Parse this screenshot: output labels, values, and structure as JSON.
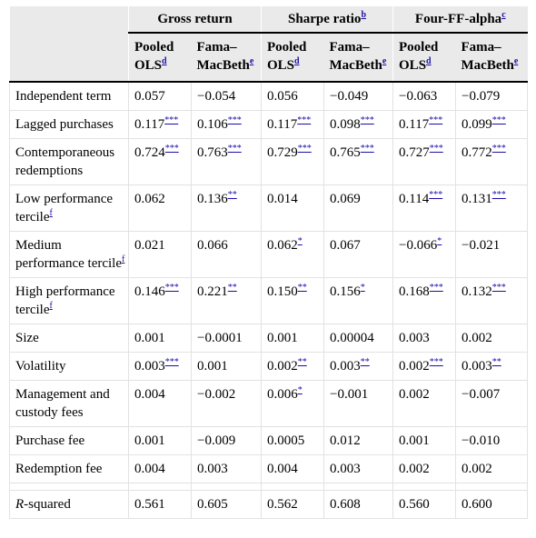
{
  "groups": [
    {
      "label": "Gross return",
      "fn": ""
    },
    {
      "label": "Sharpe ratio",
      "fn": "b"
    },
    {
      "label": "Four-FF-alpha",
      "fn": "c"
    }
  ],
  "subheaders": [
    {
      "l1": "Pooled",
      "l2": "OLS",
      "fn": "d"
    },
    {
      "l1": "Fama–",
      "l2": "MacBeth",
      "fn": "e"
    }
  ],
  "rows": [
    {
      "label": "Independent term",
      "label_fn": "",
      "cells": [
        {
          "v": "0.057",
          "s": ""
        },
        {
          "v": "−0.054",
          "s": ""
        },
        {
          "v": "0.056",
          "s": ""
        },
        {
          "v": "−0.049",
          "s": ""
        },
        {
          "v": "−0.063",
          "s": ""
        },
        {
          "v": "−0.079",
          "s": ""
        }
      ]
    },
    {
      "label": "Lagged purchases",
      "label_fn": "",
      "cells": [
        {
          "v": "0.117",
          "s": "***"
        },
        {
          "v": "0.106",
          "s": "***"
        },
        {
          "v": "0.117",
          "s": "***"
        },
        {
          "v": "0.098",
          "s": "***"
        },
        {
          "v": "0.117",
          "s": "***"
        },
        {
          "v": "0.099",
          "s": "***"
        }
      ]
    },
    {
      "label": "Contemporaneous redemptions",
      "label_fn": "",
      "cells": [
        {
          "v": "0.724",
          "s": "***"
        },
        {
          "v": "0.763",
          "s": "***"
        },
        {
          "v": "0.729",
          "s": "***"
        },
        {
          "v": "0.765",
          "s": "***"
        },
        {
          "v": "0.727",
          "s": "***"
        },
        {
          "v": "0.772",
          "s": "***"
        }
      ]
    },
    {
      "label": "Low performance tercile",
      "label_fn": "f",
      "cells": [
        {
          "v": "0.062",
          "s": ""
        },
        {
          "v": "0.136",
          "s": "**"
        },
        {
          "v": "0.014",
          "s": ""
        },
        {
          "v": "0.069",
          "s": ""
        },
        {
          "v": "0.114",
          "s": "***"
        },
        {
          "v": "0.131",
          "s": "***"
        }
      ]
    },
    {
      "label": "Medium performance tercile",
      "label_fn": "f",
      "cells": [
        {
          "v": "0.021",
          "s": ""
        },
        {
          "v": "0.066",
          "s": ""
        },
        {
          "v": "0.062",
          "s": "*"
        },
        {
          "v": "0.067",
          "s": ""
        },
        {
          "v": "−0.066",
          "s": "*"
        },
        {
          "v": "−0.021",
          "s": ""
        }
      ]
    },
    {
      "label": "High performance tercile",
      "label_fn": "f",
      "cells": [
        {
          "v": "0.146",
          "s": "***"
        },
        {
          "v": "0.221",
          "s": "**"
        },
        {
          "v": "0.150",
          "s": "**"
        },
        {
          "v": "0.156",
          "s": "*"
        },
        {
          "v": "0.168",
          "s": "***"
        },
        {
          "v": "0.132",
          "s": "***"
        }
      ]
    },
    {
      "label": "Size",
      "label_fn": "",
      "cells": [
        {
          "v": "0.001",
          "s": ""
        },
        {
          "v": "−0.0001",
          "s": ""
        },
        {
          "v": "0.001",
          "s": ""
        },
        {
          "v": "0.00004",
          "s": ""
        },
        {
          "v": "0.003",
          "s": ""
        },
        {
          "v": "0.002",
          "s": ""
        }
      ]
    },
    {
      "label": "Volatility",
      "label_fn": "",
      "cells": [
        {
          "v": "0.003",
          "s": "***"
        },
        {
          "v": "0.001",
          "s": ""
        },
        {
          "v": "0.002",
          "s": "**"
        },
        {
          "v": "0.003",
          "s": "**"
        },
        {
          "v": "0.002",
          "s": "***"
        },
        {
          "v": "0.003",
          "s": "**"
        }
      ]
    },
    {
      "label": "Management and custody fees",
      "label_fn": "",
      "cells": [
        {
          "v": "0.004",
          "s": ""
        },
        {
          "v": "−0.002",
          "s": ""
        },
        {
          "v": "0.006",
          "s": "*"
        },
        {
          "v": "−0.001",
          "s": ""
        },
        {
          "v": "0.002",
          "s": ""
        },
        {
          "v": "−0.007",
          "s": ""
        }
      ]
    },
    {
      "label": "Purchase fee",
      "label_fn": "",
      "cells": [
        {
          "v": "0.001",
          "s": ""
        },
        {
          "v": "−0.009",
          "s": ""
        },
        {
          "v": "0.0005",
          "s": ""
        },
        {
          "v": "0.012",
          "s": ""
        },
        {
          "v": "0.001",
          "s": ""
        },
        {
          "v": "−0.010",
          "s": ""
        }
      ]
    },
    {
      "label": "Redemption fee",
      "label_fn": "",
      "cells": [
        {
          "v": "0.004",
          "s": ""
        },
        {
          "v": "0.003",
          "s": ""
        },
        {
          "v": "0.004",
          "s": ""
        },
        {
          "v": "0.003",
          "s": ""
        },
        {
          "v": "0.002",
          "s": ""
        },
        {
          "v": "0.002",
          "s": ""
        }
      ]
    }
  ],
  "rsq": {
    "label_italic": "R",
    "label_rest": "-squared",
    "values": [
      "0.561",
      "0.605",
      "0.562",
      "0.608",
      "0.560",
      "0.600"
    ]
  }
}
